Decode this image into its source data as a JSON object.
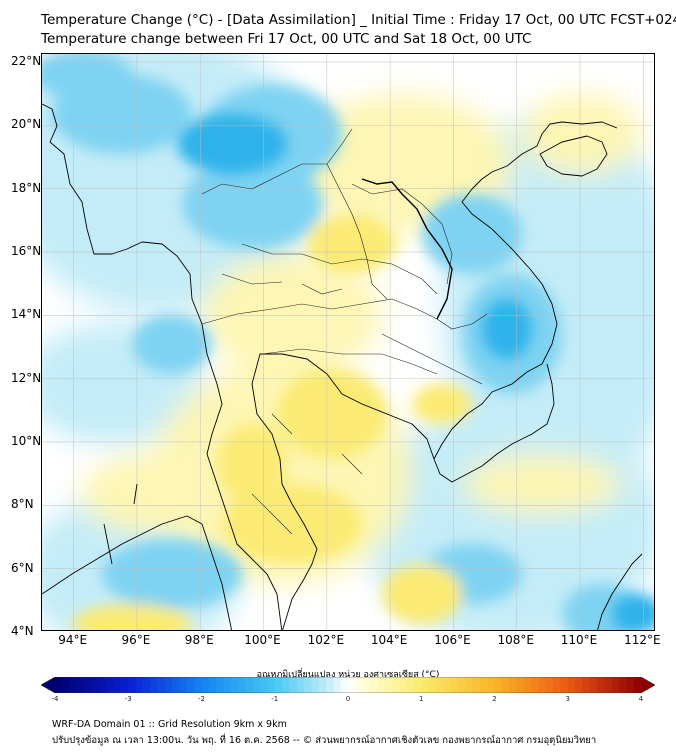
{
  "header": {
    "title_line1": "Temperature Change (°C) - [Data Assimilation] _ Initial Time : Friday 17 Oct, 00 UTC FCST+024",
    "title_line2": "Temperature change between Fri 17 Oct, 00 UTC and Sat 18 Oct, 00 UTC"
  },
  "map": {
    "lat_labels": [
      "22°N",
      "20°N",
      "18°N",
      "16°N",
      "14°N",
      "12°N",
      "10°N",
      "8°N",
      "6°N",
      "4°N"
    ],
    "lon_labels": [
      "94°E",
      "96°E",
      "98°E",
      "100°E",
      "102°E",
      "104°E",
      "106°E",
      "108°E",
      "110°E",
      "112°E"
    ],
    "lat_range": [
      4,
      22.25
    ],
    "lon_range": [
      93,
      112.4
    ],
    "field_colors": {
      "strong_cool": "#2fb2ea",
      "cool": "#7fd3f2",
      "light_cool": "#c4ecf8",
      "neutral": "#ffffff",
      "light_warm": "#fdf6b4",
      "warm": "#fbeb74"
    }
  },
  "colorbar": {
    "title": "อุณหภูมิเปลี่ยนแปลง หน่วย องศาเซลเซียส (°C)",
    "ticks": [
      "-4",
      "-3",
      "-2",
      "-1",
      "0",
      "1",
      "2",
      "3",
      "4"
    ],
    "min": -4,
    "max": 4
  },
  "footer": {
    "line1": "WRF-DA Domain 01 :: Grid Resolution 9km x 9km",
    "line2": "ปรับปรุงข้อมูล ณ เวลา 13:00น. วัน พฤ. ที่ 16 ต.ค. 2568 -- © ส่วนพยากรณ์อากาศเชิงตัวเลข กองพยากรณ์อากาศ กรมอุตุนิยมวิทยา"
  }
}
